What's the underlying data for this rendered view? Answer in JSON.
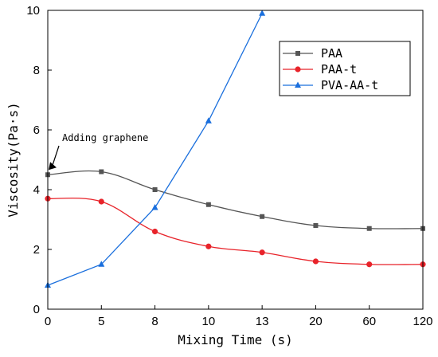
{
  "chart_data": {
    "type": "line",
    "xlabel": "Mixing Time (s)",
    "ylabel": "Viscosity(Pa·s)",
    "categories": [
      "0",
      "5",
      "8",
      "10",
      "13",
      "20",
      "60",
      "120"
    ],
    "ylim": [
      0,
      10
    ],
    "yticks": [
      "0",
      "2",
      "4",
      "6",
      "8",
      "10"
    ],
    "grid": false,
    "legend_position": "top-right",
    "series": [
      {
        "name": "PAA",
        "color": "#555555",
        "marker": "square",
        "values": [
          4.5,
          4.6,
          4.0,
          3.5,
          3.1,
          2.8,
          2.7,
          2.7
        ]
      },
      {
        "name": "PAA-t",
        "color": "#e8232a",
        "marker": "circle",
        "values": [
          3.7,
          3.6,
          2.6,
          2.1,
          1.9,
          1.6,
          1.5,
          1.5
        ]
      },
      {
        "name": "PVA-AA-t",
        "color": "#1a6fdd",
        "marker": "triangle",
        "values": [
          0.8,
          1.5,
          3.4,
          6.3,
          9.9,
          null,
          null,
          null
        ]
      }
    ],
    "annotations": [
      {
        "text": "Adding graphene",
        "x": "0",
        "y": 4.5
      }
    ]
  }
}
